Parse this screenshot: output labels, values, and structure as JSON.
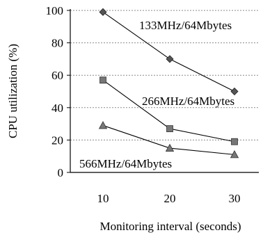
{
  "chart_data": {
    "type": "line",
    "title": "",
    "xlabel": "Monitoring interval (seconds)",
    "ylabel": "CPU utilization (%)",
    "x": [
      10,
      20,
      30
    ],
    "x_tick_labels": [
      "10",
      "20",
      "30"
    ],
    "ylim": [
      0,
      100
    ],
    "y_tick_labels": [
      "0",
      "20",
      "40",
      "60",
      "80",
      "100"
    ],
    "grid": "horizontal dotted",
    "legend": "none",
    "series": [
      {
        "name": "133MHz/64Mbytes",
        "values": [
          99,
          70,
          50
        ],
        "marker": "diamond"
      },
      {
        "name": "266MHz/64Mbytes",
        "values": [
          57,
          27,
          19
        ],
        "marker": "square"
      },
      {
        "name": "566MHz/64Mbytes",
        "values": [
          29,
          15,
          11
        ],
        "marker": "triangle"
      }
    ]
  }
}
